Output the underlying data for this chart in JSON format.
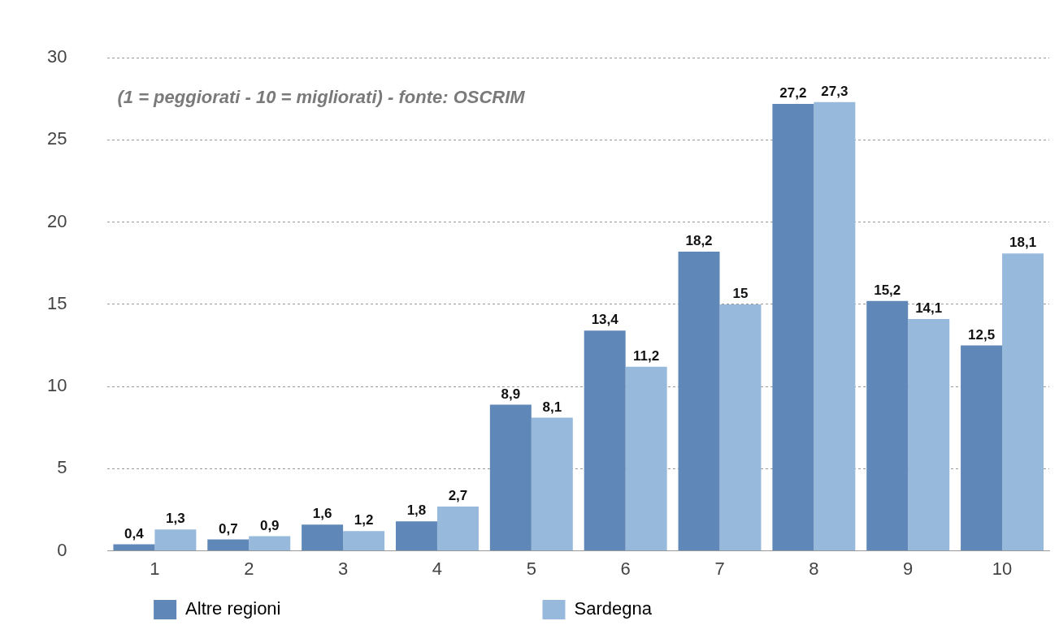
{
  "chart_data": {
    "type": "bar",
    "categories": [
      "1",
      "2",
      "3",
      "4",
      "5",
      "6",
      "7",
      "8",
      "9",
      "10"
    ],
    "series": [
      {
        "name": "Altre regioni",
        "color": "#5f87b8",
        "values": [
          0.4,
          0.7,
          1.6,
          1.8,
          8.9,
          13.4,
          18.2,
          27.2,
          15.2,
          12.5
        ],
        "value_labels": [
          "0,4",
          "0,7",
          "1,6",
          "1,8",
          "8,9",
          "13,4",
          "18,2",
          "27,2",
          "15,2",
          "12,5"
        ]
      },
      {
        "name": "Sardegna",
        "color": "#97b9dc",
        "values": [
          1.3,
          0.9,
          1.2,
          2.7,
          8.1,
          11.2,
          15,
          27.3,
          14.1,
          18.1
        ],
        "value_labels": [
          "1,3",
          "0,9",
          "1,2",
          "2,7",
          "8,1",
          "11,2",
          "15",
          "27,3",
          "14,1",
          "18,1"
        ]
      }
    ],
    "ylim": [
      0,
      30
    ],
    "yticks": [
      0,
      5,
      10,
      15,
      20,
      25,
      30
    ],
    "grid": "y",
    "legend": "bottom",
    "annotations": [
      "(1 = peggiorati - 10 = migliorati) - fonte: OSCRIM"
    ]
  }
}
